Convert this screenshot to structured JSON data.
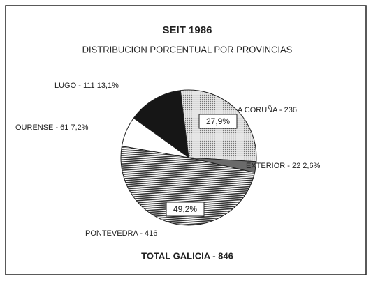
{
  "chart_data": {
    "type": "pie",
    "title": "SEIT 1986",
    "subtitle": "DISTRIBUCION PORCENTUAL POR PROVINCIAS",
    "values": [
      236,
      22,
      416,
      61,
      111
    ],
    "value_labels": [
      "A CORUÑA - 236",
      "EXTERIOR - 22 2,6%",
      "PONTEVEDRA - 416",
      "OURENSE - 61 7,2%",
      "LUGO - 111 13,1%"
    ],
    "inside_labels": [
      "27,9%",
      null,
      "49,2%",
      null,
      null
    ],
    "colors": [
      "#d4d4d4",
      "#6a6a6a",
      "#8c8c8c",
      "#ffffff",
      "#161616"
    ],
    "total_label": "TOTAL GALICIA - 846"
  }
}
